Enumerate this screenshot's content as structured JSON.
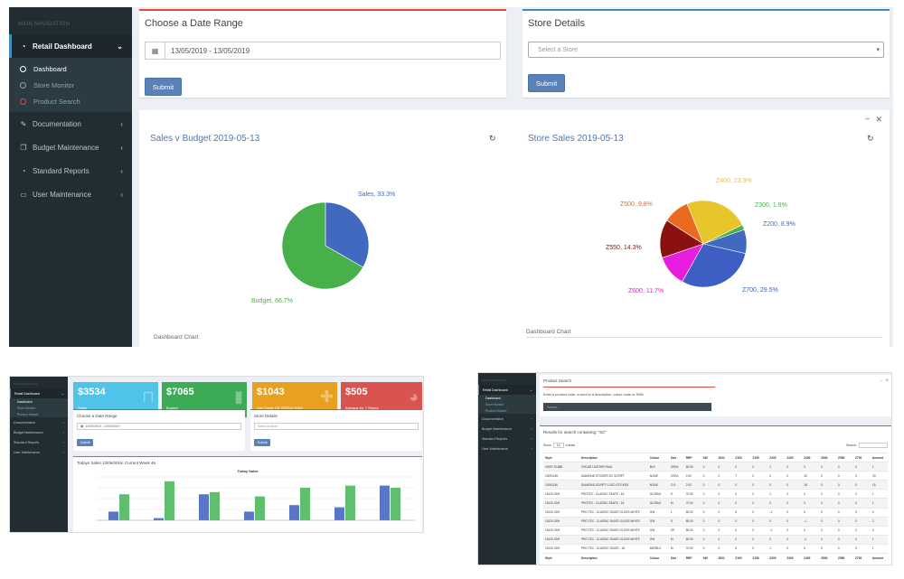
{
  "nav": {
    "header": "MAIN NAVIGATION",
    "retail_dashboard": "Retail Dashboard",
    "sub_items": [
      "Dashboard",
      "Store Monitor",
      "Product Search"
    ],
    "documentation": "Documentation",
    "budget_maintenance": "Budget Maintenance",
    "standard_reports": "Standard Reports",
    "user_maintenance": "User Maintenance"
  },
  "date_range": {
    "title": "Choose a Date Range",
    "value": "13/05/2019 - 13/05/2019",
    "submit": "Submit"
  },
  "store_details": {
    "title": "Store Details",
    "placeholder": "Select a Store",
    "submit": "Submit"
  },
  "sales_budget_chart": {
    "title": "Sales v Budget 2019-05-13",
    "labels": [
      "Sales, 33.3%",
      "Budget, 66.7%"
    ],
    "footnote": "Dashboard Chart"
  },
  "store_sales_chart": {
    "title": "Store Sales 2019-05-13",
    "labels": [
      "Z400, 23.9%",
      "Z500, 9.8%",
      "Z300, 1.9%",
      "Z200, 8.9%",
      "Z550, 14.3%",
      "Z600, 11.7%",
      "Z700, 29.5%"
    ],
    "footnote": "Dashboard Chart"
  },
  "chart_data": [
    {
      "type": "pie",
      "title": "Sales v Budget 2019-05-13",
      "categories": [
        "Sales",
        "Budget"
      ],
      "values": [
        33.3,
        66.7
      ],
      "colors": [
        "#4169c0",
        "#47b04b"
      ]
    },
    {
      "type": "pie",
      "title": "Store Sales 2019-05-13",
      "categories": [
        "Z400",
        "Z300",
        "Z200",
        "Z700",
        "Z600",
        "Z550",
        "Z500"
      ],
      "values": [
        23.9,
        1.9,
        8.9,
        29.5,
        11.7,
        14.3,
        9.8
      ],
      "colors": [
        "#e8c52a",
        "#4caf50",
        "#4169c0",
        "#3d5fc4",
        "#e81de0",
        "#8b1010",
        "#e86a1e"
      ]
    },
    {
      "type": "bar",
      "title": "Today Sales",
      "series": [
        {
          "name": "Sales",
          "values": [
            4,
            1,
            12,
            4,
            7,
            6,
            16
          ]
        },
        {
          "name": "Budget",
          "values": [
            12,
            18,
            13,
            11,
            15,
            16,
            15
          ]
        }
      ],
      "colors": [
        "#5b76c9",
        "#5fbf6f"
      ]
    }
  ],
  "dashboard_thumb": {
    "stats": [
      {
        "value": "$3534",
        "label": "Sales",
        "color": "#4fc3e8",
        "icon": "bag-icon"
      },
      {
        "value": "$7065",
        "label": "Budget",
        "color": "#3daa55",
        "icon": "bar-chart-icon"
      },
      {
        "value": "$1043",
        "label": "Day Dollar OR SPEND RSM",
        "color": "#e8a020",
        "icon": "user-plus-icon"
      },
      {
        "value": "$505",
        "label": "Average for 7 Stores",
        "color": "#d9534f",
        "icon": "pie-chart-icon"
      }
    ],
    "date_title": "Choose a Date Range",
    "date_value": "13/05/2019 - 13/05/2019",
    "store_title": "Store Details",
    "store_placeholder": "Select a Store",
    "submit": "Submit",
    "chart_box_title": "Todays Sales 13/05/2019: Current Week 46",
    "chart_title": "Today Sales"
  },
  "product_search": {
    "title": "Product Search",
    "prompt": "Enter a product code, a word in a description, colour code or SNN",
    "search_placeholder": "Search...",
    "results_title": "Results for search containing: \"SC\"",
    "show_label": "Show",
    "entries_label": "entries",
    "show_value": "10",
    "search_label": "Search:",
    "columns": [
      "Style",
      "Description",
      "Colour",
      "Size",
      "RRP",
      "SW",
      "Z001",
      "Z100",
      "Z150",
      "Z200",
      "Z300",
      "Z400",
      "Z500",
      "Z550",
      "Z700",
      "Amount"
    ],
    "rows": [
      [
        "10097-S1885",
        "OSCAR LEATHER BAG",
        "BLK",
        "OSFA",
        "80.00",
        "0",
        "0",
        "0",
        "0",
        "1",
        "0",
        "0",
        "0",
        "0",
        "0",
        "1"
      ],
      [
        "10091136",
        "DIAMOND STICKER-SC SCRIPT",
        "NONE",
        "OSFA",
        "2.00",
        "0",
        "0",
        "7",
        "0",
        "0",
        "0",
        "26",
        "0",
        "0",
        "0",
        "33"
      ],
      [
        "10091136",
        "DIAMOND SCRIPT LOGO STICKER",
        "NONE",
        "O.S",
        "2.00",
        "0",
        "0",
        "0",
        "0",
        "0",
        "0",
        "18",
        "0",
        "0",
        "0",
        "18"
      ],
      [
        "15120-3SH",
        "PROTEC - CLASSIC SKATE - 16",
        "GLOBLK",
        "S",
        "70.00",
        "0",
        "0",
        "0",
        "0",
        "1",
        "0",
        "0",
        "0",
        "0",
        "0",
        "1"
      ],
      [
        "15120-3SH",
        "PROTEC - CLASSIC SKATE - 16",
        "GLOBLK",
        "M",
        "70.00",
        "0",
        "0",
        "0",
        "0",
        "0",
        "0",
        "0",
        "0",
        "0",
        "0",
        "1"
      ],
      [
        "15120-3SH",
        "PRO TEC - CLASSIC SKATE GLOSS WHITE",
        "GW",
        "L",
        "80.00",
        "0",
        "0",
        "0",
        "0",
        "-1",
        "0",
        "0",
        "0",
        "0",
        "0",
        "0"
      ],
      [
        "15120-3SH",
        "PRO TEC - CLASSIC SKATE GLOSS WHITE",
        "GW",
        "S",
        "80.00",
        "0",
        "0",
        "0",
        "0",
        "0",
        "0",
        "-1",
        "0",
        "0",
        "0",
        "2"
      ],
      [
        "15120-3SH",
        "PRO TEC - CLASSIC SKATE GLOSS WHITE",
        "GW",
        "XS",
        "80.00",
        "0",
        "0",
        "0",
        "0",
        "-1",
        "0",
        "0",
        "0",
        "0",
        "0",
        "0"
      ],
      [
        "15120-3SH",
        "PRO TEC - CLASSIC SKATE GLOSS WHITE",
        "GW",
        "M",
        "80.00",
        "0",
        "0",
        "0",
        "0",
        "0",
        "0",
        "-1",
        "0",
        "0",
        "0",
        "1"
      ],
      [
        "15120-3SH",
        "PRO TEC - CLASSIC SKATE - 16",
        "MATBLK",
        "M",
        "70.00",
        "0",
        "0",
        "0",
        "0",
        "1",
        "0",
        "0",
        "0",
        "0",
        "0",
        "1"
      ]
    ]
  }
}
